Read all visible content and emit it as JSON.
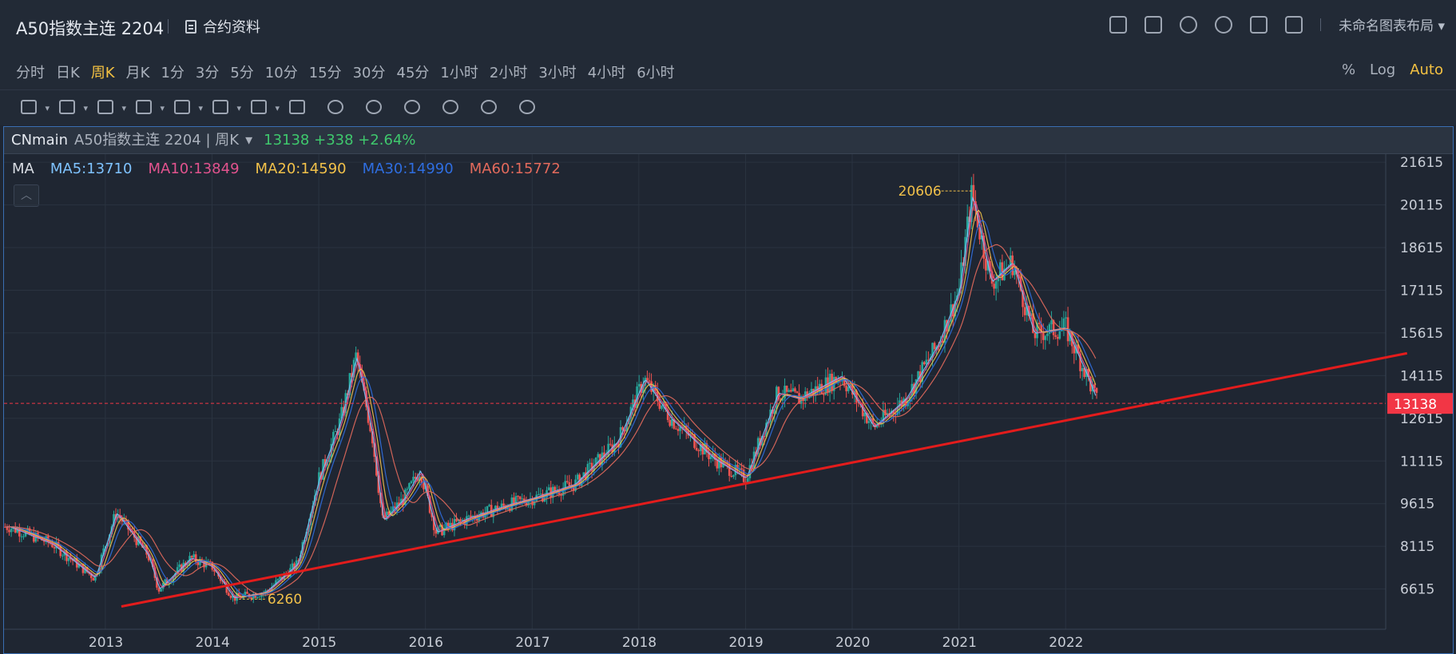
{
  "header": {
    "title": "A50指数主连 2204",
    "contract_label": "合约资料",
    "layout_name": "未命名图表布局"
  },
  "periods": [
    "分时",
    "日K",
    "周K",
    "月K",
    "1分",
    "3分",
    "5分",
    "10分",
    "15分",
    "30分",
    "45分",
    "1小时",
    "2小时",
    "3小时",
    "4小时",
    "6小时"
  ],
  "active_period": "周K",
  "scale_options": [
    {
      "label": "%",
      "active": false
    },
    {
      "label": "Log",
      "active": false
    },
    {
      "label": "Auto",
      "active": true
    }
  ],
  "draw_tools": [
    "line-tool-icon",
    "rectangle-tool-icon",
    "pattern-tool-icon",
    "fib-tool-icon",
    "arrow-tool-icon",
    "text-tool-icon",
    "measure-tool-icon",
    "candle-tool-icon",
    "pencil-icon",
    "lock-icon",
    "eye-icon",
    "magnet-icon",
    "clone-icon",
    "trash-icon"
  ],
  "info": {
    "source": "CNmain",
    "symbol": "A50指数主连 2204 | 周K",
    "price_change": "13138 +338 +2.64%"
  },
  "ma_legend": [
    {
      "label": "MA",
      "color": "#d9dde4"
    },
    {
      "label": "MA5:13710",
      "color": "#7fc3ff"
    },
    {
      "label": "MA10:13849",
      "color": "#e2538e"
    },
    {
      "label": "MA20:14590",
      "color": "#f2c14a"
    },
    {
      "label": "MA30:14990",
      "color": "#2f6ee0"
    },
    {
      "label": "MA60:15772",
      "color": "#e36a5c"
    }
  ],
  "colors": {
    "up": "#26a69a",
    "down": "#ef5350",
    "trend": "#e31c1c",
    "grid": "#2a3340",
    "axis_text": "#c8cdd6",
    "current": "#f23645"
  },
  "chart_data": {
    "type": "candlestick",
    "x_labels": [
      "2013",
      "2014",
      "2015",
      "2016",
      "2017",
      "2018",
      "2019",
      "2020",
      "2021",
      "2022"
    ],
    "y_ticks": [
      21615,
      20115,
      18615,
      17115,
      15615,
      14115,
      12615,
      11115,
      9615,
      8115,
      6615
    ],
    "ylim": [
      5200,
      21900
    ],
    "current_price": 13138,
    "high_label": "20606",
    "low_label": "6260",
    "price_path": [
      [
        2012.1,
        8800
      ],
      [
        2012.5,
        8200
      ],
      [
        2012.9,
        7000
      ],
      [
        2013.1,
        9300
      ],
      [
        2013.4,
        7800
      ],
      [
        2013.5,
        6600
      ],
      [
        2013.8,
        7700
      ],
      [
        2014.0,
        7400
      ],
      [
        2014.2,
        6300
      ],
      [
        2014.5,
        6500
      ],
      [
        2014.8,
        7500
      ],
      [
        2015.0,
        10500
      ],
      [
        2015.2,
        12500
      ],
      [
        2015.35,
        14800
      ],
      [
        2015.5,
        12000
      ],
      [
        2015.6,
        9000
      ],
      [
        2015.8,
        9800
      ],
      [
        2015.95,
        10800
      ],
      [
        2016.1,
        8600
      ],
      [
        2016.4,
        9100
      ],
      [
        2016.8,
        9600
      ],
      [
        2017.0,
        9800
      ],
      [
        2017.4,
        10300
      ],
      [
        2017.8,
        11800
      ],
      [
        2018.05,
        14000
      ],
      [
        2018.3,
        12600
      ],
      [
        2018.7,
        11200
      ],
      [
        2019.0,
        10500
      ],
      [
        2019.3,
        13500
      ],
      [
        2019.5,
        13300
      ],
      [
        2019.9,
        14100
      ],
      [
        2020.2,
        12300
      ],
      [
        2020.5,
        13300
      ],
      [
        2020.8,
        15200
      ],
      [
        2021.0,
        17100
      ],
      [
        2021.12,
        20500
      ],
      [
        2021.3,
        17400
      ],
      [
        2021.5,
        18100
      ],
      [
        2021.7,
        15600
      ],
      [
        2022.0,
        15800
      ],
      [
        2022.2,
        14100
      ],
      [
        2022.3,
        13138
      ]
    ],
    "series": [
      {
        "name": "MA5",
        "color": "#7fc3ff",
        "lag": 0.02
      },
      {
        "name": "MA10",
        "color": "#e2538e",
        "lag": 0.05
      },
      {
        "name": "MA20",
        "color": "#f2c14a",
        "lag": 0.1
      },
      {
        "name": "MA30",
        "color": "#2f6ee0",
        "lag": 0.16
      },
      {
        "name": "MA60",
        "color": "#e36a5c",
        "lag": 0.32
      }
    ],
    "trend_line": [
      [
        2013.15,
        6000
      ],
      [
        2025.2,
        14900
      ]
    ]
  }
}
